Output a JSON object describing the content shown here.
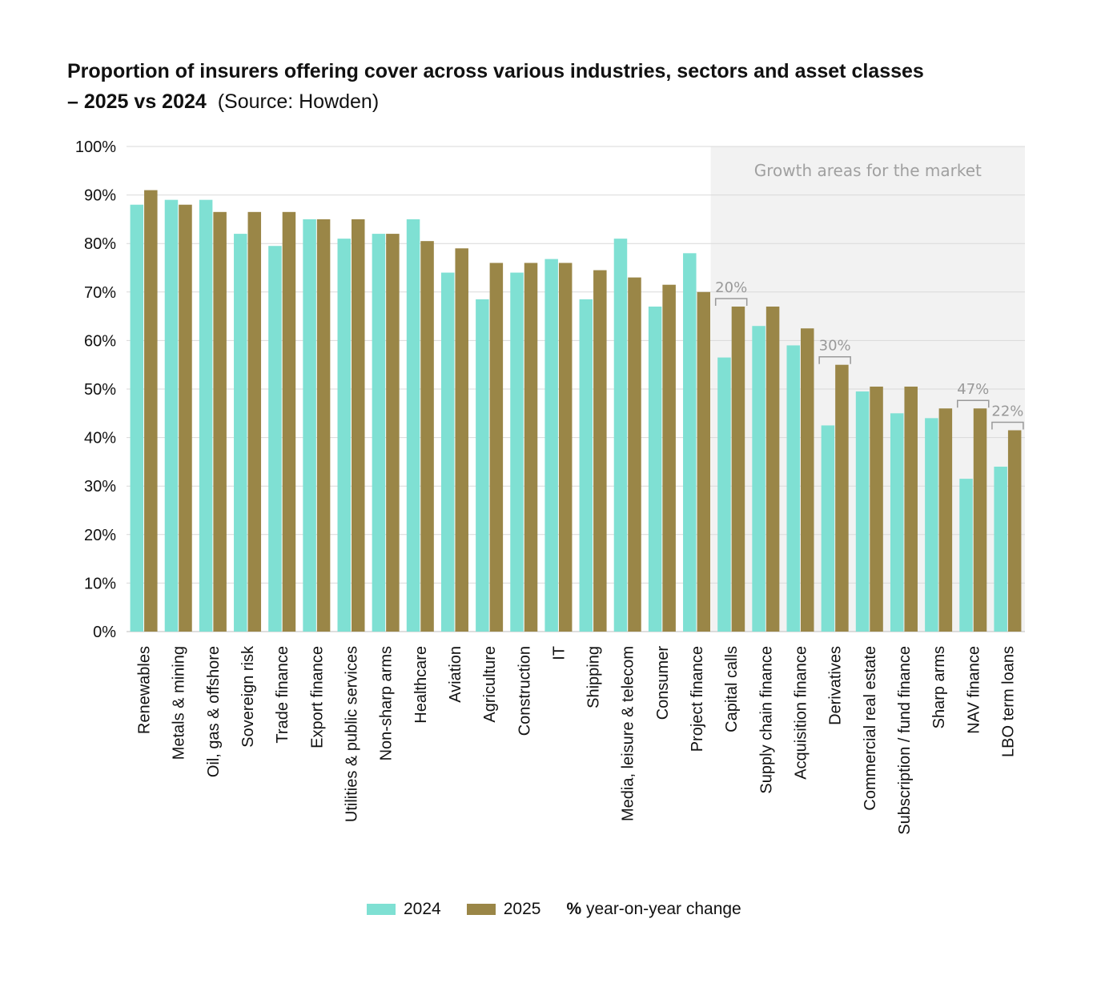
{
  "title": {
    "line1": "Proportion of insurers offering cover across various industries, sectors and asset classes",
    "line2_bold": "– 2025 vs 2024",
    "line2_source": "(Source: Howden)"
  },
  "colors": {
    "s2024": "#7fe0d3",
    "s2025": "#9a8647",
    "grid": "#d9d9d9",
    "band": "#f2f2f2",
    "annot": "#999999"
  },
  "legend": {
    "s2024": "2024",
    "s2025": "2025",
    "note_symbol": "%",
    "note_text": " year-on-year change"
  },
  "chart_data": {
    "type": "bar",
    "title": "Proportion of insurers offering cover across various industries, sectors and asset classes – 2025 vs 2024 (Source: Howden)",
    "xlabel": "",
    "ylabel": "",
    "ylim": [
      0,
      100
    ],
    "yticks": [
      0,
      10,
      20,
      30,
      40,
      50,
      60,
      70,
      80,
      90,
      100
    ],
    "ytick_labels": [
      "0%",
      "10%",
      "20%",
      "30%",
      "40%",
      "50%",
      "60%",
      "70%",
      "80%",
      "90%",
      "100%"
    ],
    "categories": [
      "Renewables",
      "Metals & mining",
      "Oil, gas & offshore",
      "Sovereign risk",
      "Trade finance",
      "Export finance",
      "Utilities & public services",
      "Non-sharp arms",
      "Healthcare",
      "Aviation",
      "Agriculture",
      "Construction",
      "IT",
      "Shipping",
      "Media, leisure & telecom",
      "Consumer",
      "Project finance",
      "Capital calls",
      "Supply chain finance",
      "Acquisition finance",
      "Derivatives",
      "Commercial real estate",
      "Subscription / fund finance",
      "Sharp arms",
      "NAV finance",
      "LBO term loans"
    ],
    "series": [
      {
        "name": "2024",
        "values": [
          88,
          89,
          89,
          82,
          79.5,
          85,
          81,
          82,
          85,
          74,
          68.5,
          74,
          76.8,
          68.5,
          81,
          67,
          78,
          56.5,
          63,
          59,
          42.5,
          49.5,
          45,
          44,
          31.5,
          34
        ]
      },
      {
        "name": "2025",
        "values": [
          91,
          88,
          86.5,
          86.5,
          86.5,
          85,
          85,
          82,
          80.5,
          79,
          76,
          76,
          76,
          74.5,
          73,
          71.5,
          70,
          67,
          67,
          62.5,
          55,
          50.5,
          50.5,
          46,
          46,
          41.5
        ]
      }
    ],
    "shaded_region": {
      "label": "Growth areas for the market",
      "from_category": "Capital calls",
      "to_category": "LBO term loans"
    },
    "annotations": [
      {
        "category": "Capital calls",
        "label": "20%"
      },
      {
        "category": "Derivatives",
        "label": "30%"
      },
      {
        "category": "NAV finance",
        "label": "47%"
      },
      {
        "category": "LBO term loans",
        "label": "22%"
      }
    ],
    "grid": true,
    "legend_position": "bottom"
  }
}
